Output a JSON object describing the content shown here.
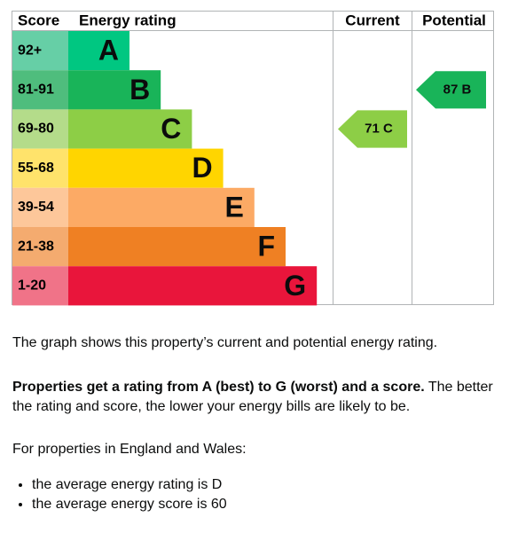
{
  "header": {
    "score": "Score",
    "rating": "Energy rating",
    "current": "Current",
    "potential": "Potential"
  },
  "bands": [
    {
      "score": "92+",
      "letter": "A",
      "color": "#00c781",
      "light": "#66cfa6"
    },
    {
      "score": "81-91",
      "letter": "B",
      "color": "#19b459",
      "light": "#4fbd7d"
    },
    {
      "score": "69-80",
      "letter": "C",
      "color": "#8dce46",
      "light": "#b4dc8a"
    },
    {
      "score": "55-68",
      "letter": "D",
      "color": "#ffd500",
      "light": "#ffe36b"
    },
    {
      "score": "39-54",
      "letter": "E",
      "color": "#fcaa65",
      "light": "#fdc79a"
    },
    {
      "score": "21-38",
      "letter": "F",
      "color": "#ef8023",
      "light": "#f4ab6f"
    },
    {
      "score": "1-20",
      "letter": "G",
      "color": "#e9153b",
      "light": "#f07388"
    }
  ],
  "current": {
    "value": 71,
    "letter": "C",
    "color": "#8dce46"
  },
  "potential": {
    "value": 87,
    "letter": "B",
    "color": "#19b459"
  },
  "text": {
    "p1": "The graph shows this property’s current and potential energy rating.",
    "p2_bold": "Properties get a rating from A (best) to G (worst) and a score.",
    "p2_rest": " The better the rating and score, the lower your energy bills are likely to be.",
    "p3": "For properties in England and Wales:",
    "list": [
      "the average energy rating is D",
      "the average energy score is 60"
    ]
  }
}
